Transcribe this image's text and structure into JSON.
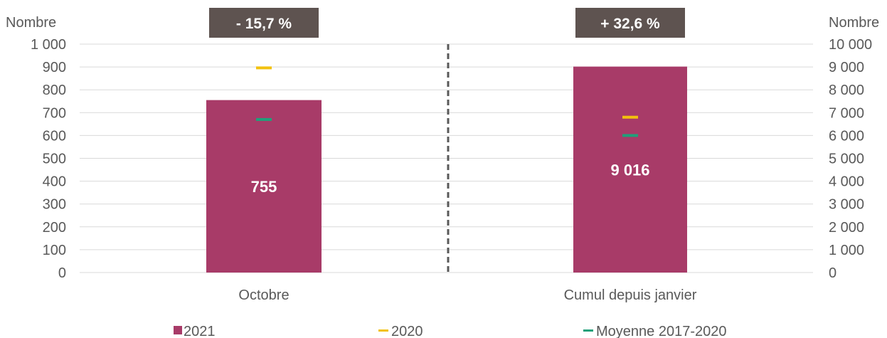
{
  "chart_data": {
    "type": "bar",
    "categories": [
      "Octobre",
      "Cumul depuis janvier"
    ],
    "left_axis": {
      "label": "Nombre",
      "ylim": [
        0,
        1000
      ],
      "ticks": [
        "0",
        "100",
        "200",
        "300",
        "400",
        "500",
        "600",
        "700",
        "800",
        "900",
        "1 000"
      ]
    },
    "right_axis": {
      "label": "Nombre",
      "ylim": [
        0,
        10000
      ],
      "ticks": [
        "0",
        "1 000",
        "2 000",
        "3 000",
        "4 000",
        "5 000",
        "6 000",
        "7 000",
        "8 000",
        "9 000",
        "10 000"
      ]
    },
    "series": [
      {
        "name": "2021",
        "type": "bar",
        "color": "#A83B68",
        "values": [
          755,
          9016
        ],
        "labels": [
          "755",
          "9 016"
        ]
      },
      {
        "name": "2020",
        "type": "marker",
        "color": "#F2C10E",
        "values": [
          896,
          6800
        ]
      },
      {
        "name": "Moyenne 2017-2020",
        "type": "marker",
        "color": "#1FA07A",
        "values": [
          670,
          6000
        ]
      }
    ],
    "changes": [
      "- 15,7 %",
      "+ 32,6 %"
    ],
    "badge_color": "#5E5350",
    "grid": true,
    "legend_position": "bottom"
  }
}
